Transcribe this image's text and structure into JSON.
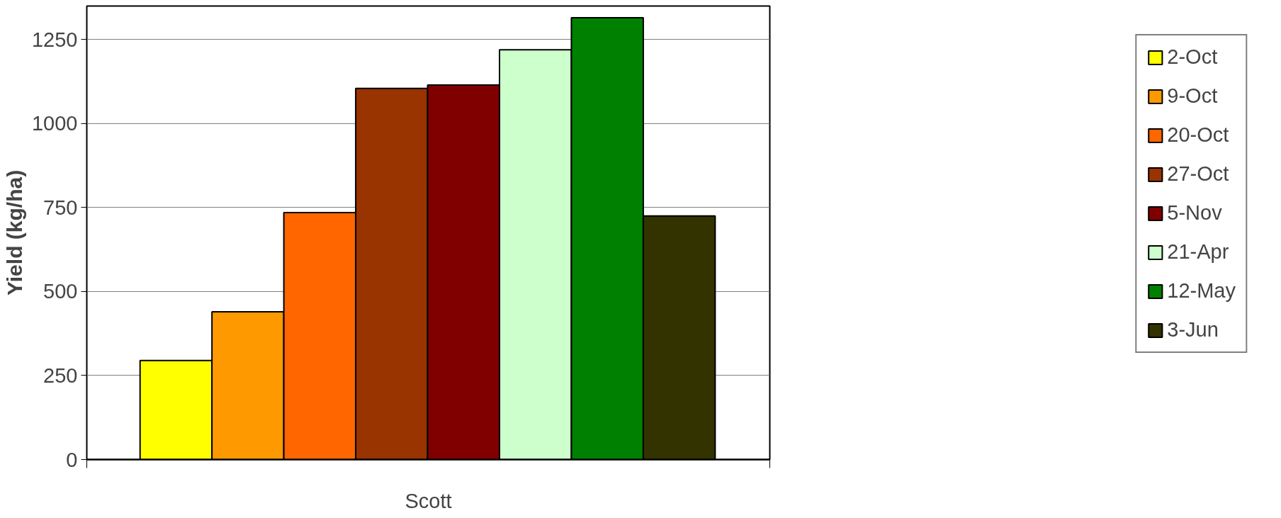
{
  "chart_data": {
    "type": "bar",
    "ylabel": "Yield (kg/ha)",
    "categories": [
      "Scott"
    ],
    "series": [
      {
        "name": "2-Oct",
        "color": "#ffff00",
        "values": [
          295
        ]
      },
      {
        "name": "9-Oct",
        "color": "#ff9900",
        "values": [
          440
        ]
      },
      {
        "name": "20-Oct",
        "color": "#ff6600",
        "values": [
          735
        ]
      },
      {
        "name": "27-Oct",
        "color": "#993300",
        "values": [
          1105
        ]
      },
      {
        "name": "5-Nov",
        "color": "#800000",
        "values": [
          1115
        ]
      },
      {
        "name": "21-Apr",
        "color": "#ccffcc",
        "values": [
          1220
        ]
      },
      {
        "name": "12-May",
        "color": "#008000",
        "values": [
          1315
        ]
      },
      {
        "name": "3-Jun",
        "color": "#333300",
        "values": [
          725
        ]
      }
    ],
    "ylim": [
      0,
      1350
    ],
    "yticks": [
      0,
      250,
      500,
      750,
      1000,
      1250
    ],
    "grid": "y",
    "legend": "right"
  }
}
